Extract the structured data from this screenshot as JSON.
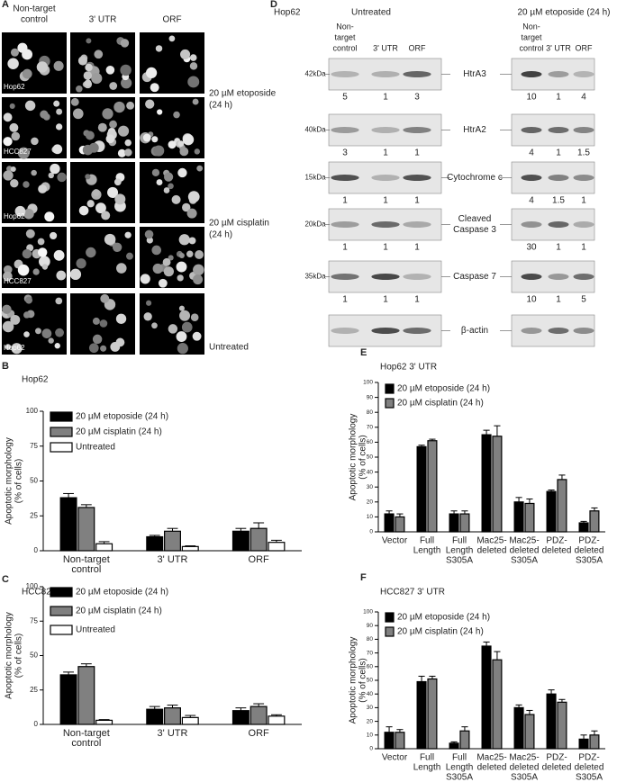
{
  "panel_a": {
    "label": "A",
    "columns": [
      [
        "Non-target",
        "control"
      ],
      [
        "3' UTR"
      ],
      [
        "ORF"
      ]
    ],
    "rows": [
      [
        "20 µM etoposide",
        "(24 h)"
      ],
      [
        "20 µM cisplatin",
        "(24 h)"
      ],
      [
        "Untreated"
      ]
    ],
    "cell_lines": [
      "Hop62",
      "HCC827",
      "Hop62",
      "HCC827",
      "Hop62"
    ]
  },
  "panel_d": {
    "label": "D",
    "cell_line": "Hop62",
    "groups": [
      {
        "title": "Untreated",
        "lanes": [
          [
            "Non-",
            "target",
            "control"
          ],
          [
            "3' UTR"
          ],
          [
            "ORF"
          ]
        ]
      },
      {
        "title": "20 µM etoposide (24 h)",
        "lanes": [
          [
            "Non-",
            "target",
            "control"
          ],
          [
            "3' UTR"
          ],
          [
            "ORF"
          ]
        ]
      }
    ],
    "blots": [
      {
        "marker": "42kDa",
        "name": [
          "HtrA3"
        ],
        "quant": [
          [
            5,
            1,
            3
          ],
          [
            10,
            1,
            4
          ]
        ]
      },
      {
        "marker": "40kDa",
        "name": [
          "HtrA2"
        ],
        "quant": [
          [
            3,
            1,
            1
          ],
          [
            4,
            1,
            1.5
          ]
        ]
      },
      {
        "marker": "15kDa",
        "name": [
          "Cytochrome c"
        ],
        "quant": [
          [
            1,
            1,
            1
          ],
          [
            4,
            1.5,
            1
          ]
        ]
      },
      {
        "marker": "20kDa",
        "name": [
          "Cleaved",
          "Caspase 3"
        ],
        "quant": [
          [
            1,
            1,
            1
          ],
          [
            30,
            1,
            1
          ]
        ]
      },
      {
        "marker": "35kDa",
        "name": [
          "Caspase 7"
        ],
        "quant": [
          [
            1,
            1,
            1
          ],
          [
            10,
            1,
            5
          ]
        ]
      },
      {
        "name": [
          "β-actin"
        ]
      }
    ]
  },
  "chart_data": [
    {
      "type": "bar",
      "panel": "B",
      "title": "Hop62",
      "ylabel": [
        "Apoptotic morphology",
        "(% of cells)"
      ],
      "categories": [
        [
          "Non-target",
          "control"
        ],
        [
          "3' UTR"
        ],
        [
          "ORF"
        ]
      ],
      "series": [
        {
          "name": "20 µM etoposide (24 h)",
          "color": "#000000",
          "values": [
            38,
            10,
            14
          ],
          "errors": [
            3,
            1,
            2
          ]
        },
        {
          "name": "20 µM cisplatin (24 h)",
          "color": "#808080",
          "values": [
            31,
            14,
            16
          ],
          "errors": [
            2,
            2,
            4
          ]
        },
        {
          "name": "Untreated",
          "color": "#ffffff",
          "values": [
            5,
            3,
            6
          ],
          "errors": [
            1.5,
            0.5,
            1.5
          ]
        }
      ],
      "ylim": [
        0,
        100
      ],
      "yticks": [
        0,
        25,
        50,
        75,
        100
      ]
    },
    {
      "type": "bar",
      "panel": "C",
      "title": "HCC827",
      "ylabel": [
        "Apoptotic morphology",
        "(% of cells)"
      ],
      "categories": [
        [
          "Non-target",
          "control"
        ],
        [
          "3' UTR"
        ],
        [
          "ORF"
        ]
      ],
      "series": [
        {
          "name": "20 µM etoposide (24 h)",
          "color": "#000000",
          "values": [
            36,
            11,
            10
          ],
          "errors": [
            2,
            2,
            2
          ]
        },
        {
          "name": "20 µM cisplatin (24 h)",
          "color": "#808080",
          "values": [
            42,
            12,
            13
          ],
          "errors": [
            2,
            2,
            2
          ]
        },
        {
          "name": "Untreated",
          "color": "#ffffff",
          "values": [
            3,
            5,
            6
          ],
          "errors": [
            0.5,
            1.5,
            1
          ]
        }
      ],
      "ylim": [
        0,
        100
      ],
      "yticks": [
        0,
        25,
        50,
        75,
        100
      ]
    },
    {
      "type": "bar",
      "panel": "E",
      "title": "Hop62 3' UTR",
      "ylabel": [
        "Apoptotic morphology",
        "(% of cells)"
      ],
      "categories": [
        [
          "Vector"
        ],
        [
          "Full",
          "Length"
        ],
        [
          "Full",
          "Length",
          "S305A"
        ],
        [
          "Mac25-",
          "deleted"
        ],
        [
          "Mac25-",
          "deleted",
          "S305A"
        ],
        [
          "PDZ-",
          "deleted"
        ],
        [
          "PDZ-",
          "deleted",
          "S305A"
        ]
      ],
      "series": [
        {
          "name": "20 µM etoposide (24 h)",
          "color": "#000000",
          "values": [
            12,
            57,
            12,
            65,
            20,
            27,
            6
          ],
          "errors": [
            2,
            1,
            2,
            3,
            3,
            1,
            1
          ]
        },
        {
          "name": "20 µM cisplatin (24 h)",
          "color": "#808080",
          "values": [
            10,
            61,
            12,
            64,
            19,
            35,
            14
          ],
          "errors": [
            2,
            1,
            2,
            7,
            3,
            3,
            2
          ]
        }
      ],
      "ylim": [
        0,
        100
      ],
      "yticks": [
        0,
        10,
        20,
        30,
        40,
        50,
        60,
        70,
        80,
        90,
        100
      ]
    },
    {
      "type": "bar",
      "panel": "F",
      "title": "HCC827 3' UTR",
      "ylabel": [
        "Apoptotic morphology",
        "(% of cells)"
      ],
      "categories": [
        [
          "Vector"
        ],
        [
          "Full",
          "Length"
        ],
        [
          "Full",
          "Length",
          "S305A"
        ],
        [
          "Mac25-",
          "deleted"
        ],
        [
          "Mac25-",
          "deleted",
          "S305A"
        ],
        [
          "PDZ-",
          "deleted"
        ],
        [
          "PDZ-",
          "deleted",
          "S305A"
        ]
      ],
      "series": [
        {
          "name": "20 µM etoposide (24 h)",
          "color": "#000000",
          "values": [
            12,
            49,
            4,
            75,
            30,
            40,
            7
          ],
          "errors": [
            4,
            4,
            1,
            3,
            2,
            3,
            3
          ]
        },
        {
          "name": "20 µM cisplatin (24 h)",
          "color": "#808080",
          "values": [
            12,
            51,
            13,
            65,
            25,
            34,
            10
          ],
          "errors": [
            2,
            2,
            3,
            6,
            3,
            2,
            3
          ]
        }
      ],
      "ylim": [
        0,
        100
      ],
      "yticks": [
        0,
        10,
        20,
        30,
        40,
        50,
        60,
        70,
        80,
        90,
        100
      ]
    }
  ]
}
